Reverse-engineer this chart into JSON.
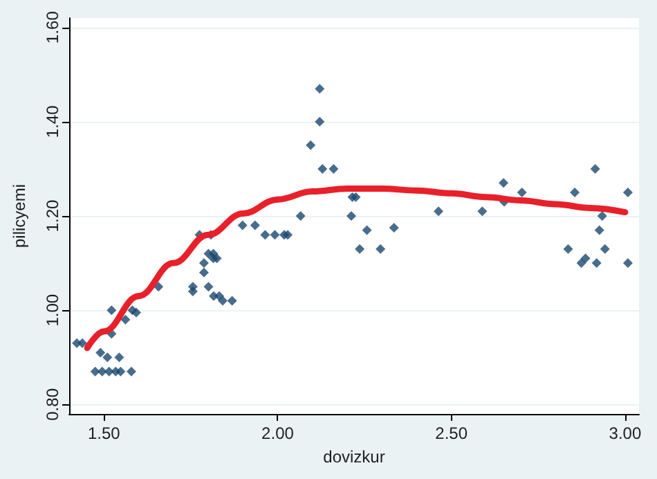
{
  "chart_data": {
    "type": "scatter",
    "xlabel": "dovizkur",
    "ylabel": "pilicyemi",
    "xlim": [
      1.4,
      3.04
    ],
    "ylim": [
      0.78,
      1.62
    ],
    "xticks": [
      {
        "value": 1.5,
        "label": "1.50"
      },
      {
        "value": 2,
        "label": "2.00"
      },
      {
        "value": 2.5,
        "label": "2.50"
      },
      {
        "value": 3,
        "label": "3.00"
      }
    ],
    "yticks": [
      {
        "value": 0.8,
        "label": "0.80"
      },
      {
        "value": 1,
        "label": "1.00"
      },
      {
        "value": 1.2,
        "label": "1.20"
      },
      {
        "value": 1.4,
        "label": "1.40"
      },
      {
        "value": 1.6,
        "label": "1.60"
      }
    ],
    "grid": "y",
    "marker": "diamond",
    "series": [
      {
        "color": "#1a476f",
        "x": [
          1.422,
          1.438,
          1.475,
          1.495,
          1.515,
          1.534,
          1.548,
          1.579,
          1.49,
          1.51,
          1.544,
          1.522,
          1.522,
          1.562,
          1.582,
          1.593,
          1.657,
          1.756,
          1.756,
          1.775,
          1.788,
          1.788,
          1.801,
          1.801,
          1.808,
          1.815,
          1.815,
          1.825,
          1.816,
          1.832,
          1.842,
          1.869,
          1.899,
          1.935,
          1.964,
          1.992,
          2.019,
          2.029,
          2.066,
          2.095,
          2.121,
          2.121,
          2.129,
          2.161,
          2.212,
          2.215,
          2.225,
          2.236,
          2.257,
          2.296,
          2.335,
          2.463,
          2.589,
          2.65,
          2.652,
          2.703,
          2.836,
          2.855,
          2.874,
          2.886,
          2.914,
          2.918,
          2.926,
          2.934,
          2.942,
          3.008,
          3.008
        ],
        "values": [
          0.93,
          0.93,
          0.87,
          0.87,
          0.87,
          0.87,
          0.87,
          0.87,
          0.91,
          0.9,
          0.9,
          0.95,
          1.0,
          0.98,
          1.0,
          0.995,
          1.05,
          1.05,
          1.04,
          1.16,
          1.1,
          1.08,
          1.05,
          1.12,
          1.16,
          1.12,
          1.11,
          1.11,
          1.03,
          1.03,
          1.02,
          1.02,
          1.18,
          1.18,
          1.16,
          1.16,
          1.16,
          1.16,
          1.2,
          1.35,
          1.47,
          1.4,
          1.3,
          1.3,
          1.2,
          1.24,
          1.24,
          1.13,
          1.17,
          1.13,
          1.175,
          1.21,
          1.21,
          1.27,
          1.23,
          1.25,
          1.13,
          1.25,
          1.1,
          1.11,
          1.3,
          1.1,
          1.17,
          1.2,
          1.13,
          1.25,
          1.1
        ]
      },
      {
        "type": "line",
        "color": "#e8202a",
        "marker": "none",
        "line_style": "solid",
        "x": [
          1.452,
          1.5,
          1.6,
          1.7,
          1.8,
          1.9,
          2.0,
          2.1,
          2.2,
          2.3,
          2.4,
          2.5,
          2.6,
          2.7,
          2.8,
          2.9,
          3.0
        ],
        "values": [
          0.92,
          0.955,
          1.03,
          1.1,
          1.16,
          1.205,
          1.235,
          1.252,
          1.258,
          1.258,
          1.254,
          1.248,
          1.24,
          1.233,
          1.225,
          1.217,
          1.208
        ]
      }
    ]
  }
}
